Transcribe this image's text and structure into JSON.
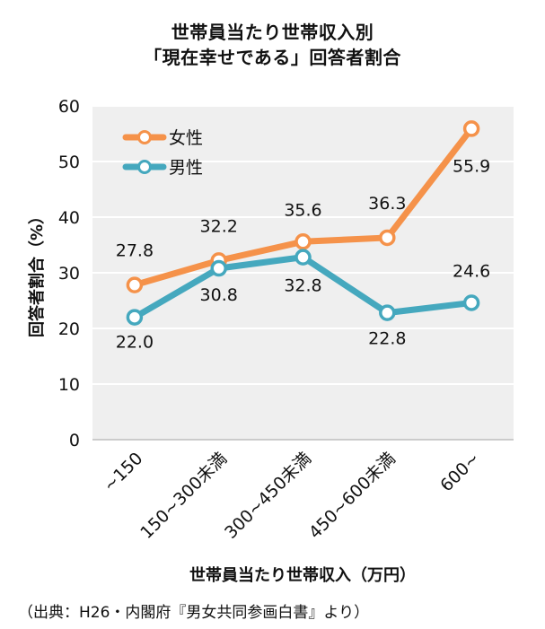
{
  "chart_data": {
    "type": "line",
    "title_line1": "世帯員当たり世帯収入別",
    "title_line2": "「現在幸せである」回答者割合",
    "categories": [
      "~150",
      "150~300未満",
      "300~450未満",
      "450~600未満",
      "600~"
    ],
    "series": [
      {
        "name": "女性",
        "values": [
          27.8,
          32.2,
          35.6,
          36.3,
          55.9
        ],
        "labels": [
          "27.8",
          "32.2",
          "35.6",
          "36.3",
          "55.9"
        ],
        "color": "#F5924A"
      },
      {
        "name": "男性",
        "values": [
          22.0,
          30.8,
          32.8,
          22.8,
          24.6
        ],
        "labels": [
          "22.0",
          "30.8",
          "32.8",
          "22.8",
          "24.6"
        ],
        "color": "#45A8BE"
      }
    ],
    "xlabel": "世帯員当たり世帯収入（万円）",
    "ylabel": "回答者割合（%）",
    "ylim": [
      0,
      60
    ],
    "yticks": [
      "0",
      "10",
      "20",
      "30",
      "40",
      "50",
      "60"
    ],
    "grid": true,
    "legend": "top-left"
  },
  "source": "（出典：H26・内閣府『男女共同参画白書』より）"
}
